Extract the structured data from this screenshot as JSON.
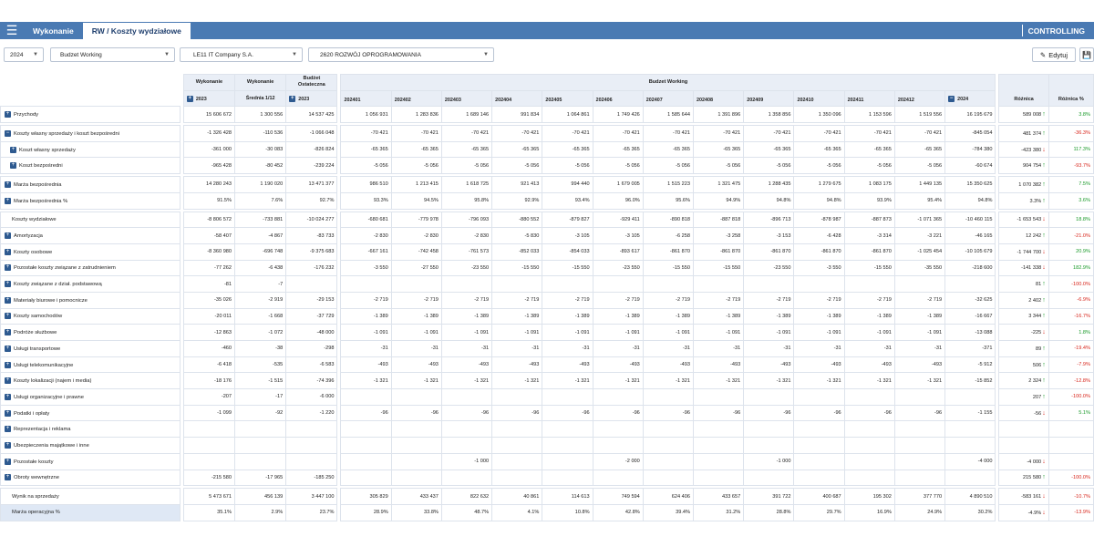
{
  "tabs": {
    "wykonanie": "Wykonanie",
    "koszty": "RW / Koszty wydziałowe",
    "controlling": "CONTROLLING"
  },
  "filters": {
    "year": "2024",
    "version": "Budzet Working",
    "company": "LE11 IT Company S.A.",
    "department": "2620 ROZWÓJ OPROGRAMOWANIA",
    "edit_label": "Edytuj"
  },
  "colors": {
    "header_bar": "#4a7ab3",
    "positive": "#1a9a2a",
    "negative": "#d8261c"
  },
  "headers": {
    "wyk": "Wykonanie",
    "wyk_year": "2023",
    "wyk2": "Wykonanie",
    "wyk2_sub": "Średnia 1/12",
    "bud": "Budżet Ostateczna",
    "bud_year": "2023",
    "bw": "Budzet Working",
    "months": [
      "202401",
      "202402",
      "202403",
      "202404",
      "202405",
      "202406",
      "202407",
      "202408",
      "202409",
      "202410",
      "202411",
      "202412"
    ],
    "total_year": "2024",
    "diff": "Różnica",
    "diff_pct": "Różnica %"
  },
  "rows": [
    {
      "label": "Przychody",
      "icon": "plus",
      "v": [
        "15 606 672",
        "1 300 556",
        "14 537 425",
        "1 056 931",
        "1 283 836",
        "1 689 146",
        "991 834",
        "1 064 861",
        "1 749 426",
        "1 585 644",
        "1 391 896",
        "1 358 856",
        "1 350 096",
        "1 153 596",
        "1 519 556",
        "16 195 679"
      ],
      "diff": "589 008",
      "dir": "up",
      "pct": "3.8%",
      "pc": "pos"
    },
    {
      "gap": true
    },
    {
      "label": "Koszty własny sprzedaży i koszt bezpośredni",
      "icon": "minus",
      "v": [
        "-1 326 428",
        "-110 536",
        "-1 066 048",
        "-70 421",
        "-70 421",
        "-70 421",
        "-70 421",
        "-70 421",
        "-70 421",
        "-70 421",
        "-70 421",
        "-70 421",
        "-70 421",
        "-70 421",
        "-70 421",
        "-845 054"
      ],
      "diff": "481 374",
      "dir": "up",
      "pct": "-36.3%",
      "pc": "neg"
    },
    {
      "label": "Koszt własny sprzedaży",
      "icon": "plus",
      "indent": true,
      "v": [
        "-361 000",
        "-30 083",
        "-826 824",
        "-65 365",
        "-65 365",
        "-65 365",
        "-65 365",
        "-65 365",
        "-65 365",
        "-65 365",
        "-65 365",
        "-65 365",
        "-65 365",
        "-65 365",
        "-65 365",
        "-784 380"
      ],
      "diff": "-423 380",
      "dir": "dn",
      "pct": "117.3%",
      "pc": "pos"
    },
    {
      "label": "Koszt bezpośredni",
      "icon": "plus",
      "indent": true,
      "v": [
        "-965 428",
        "-80 452",
        "-239 224",
        "-5 056",
        "-5 056",
        "-5 056",
        "-5 056",
        "-5 056",
        "-5 056",
        "-5 056",
        "-5 056",
        "-5 056",
        "-5 056",
        "-5 056",
        "-5 056",
        "-60 674"
      ],
      "diff": "904 754",
      "dir": "up",
      "pct": "-93.7%",
      "pc": "neg"
    },
    {
      "gap": true
    },
    {
      "label": "Marża bezpośrednia",
      "icon": "plus",
      "v": [
        "14 280 243",
        "1 190 020",
        "13 471 377",
        "986 510",
        "1 213 415",
        "1 618 725",
        "921 413",
        "994 440",
        "1 679 005",
        "1 515 223",
        "1 321 475",
        "1 288 435",
        "1 279 675",
        "1 083 175",
        "1 449 135",
        "15 350 625"
      ],
      "diff": "1 070 382",
      "dir": "up",
      "pct": "7.5%",
      "pc": "pos"
    },
    {
      "label": "Marża bezpośrednia %",
      "icon": "plus",
      "v": [
        "91.5%",
        "7.6%",
        "92.7%",
        "93.3%",
        "94.5%",
        "95.8%",
        "92.9%",
        "93.4%",
        "96.0%",
        "95.6%",
        "94.9%",
        "94.8%",
        "94.8%",
        "93.9%",
        "95.4%",
        "94.8%"
      ],
      "diff": "3.3%",
      "dir": "up",
      "pct": "3.6%",
      "pc": "pos"
    },
    {
      "gap": true
    },
    {
      "label": "Koszty wydziałowe",
      "icon": "none",
      "v": [
        "-8 806 572",
        "-733 881",
        "-10 024 277",
        "-680 681",
        "-779 978",
        "-796 093",
        "-880 552",
        "-879 827",
        "-929 411",
        "-890 818",
        "-887 818",
        "-896 713",
        "-878 987",
        "-887 873",
        "-1 071 365",
        "-10 460 115"
      ],
      "diff": "-1 653 543",
      "dir": "dn",
      "pct": "18.8%",
      "pc": "pos"
    },
    {
      "label": "Amortyzacja",
      "icon": "plus",
      "v": [
        "-58 407",
        "-4 867",
        "-83 733",
        "-2 830",
        "-2 830",
        "-2 830",
        "-5 830",
        "-3 105",
        "-3 105",
        "-6 258",
        "-3 258",
        "-3 153",
        "-6 428",
        "-3 314",
        "-3 221",
        "-46 165"
      ],
      "diff": "12 242",
      "dir": "up",
      "pct": "-21.0%",
      "pc": "neg"
    },
    {
      "label": "Koszty osobowe",
      "icon": "plus",
      "v": [
        "-8 360 980",
        "-696 748",
        "-9 375 683",
        "-667 161",
        "-742 458",
        "-761 573",
        "-852 033",
        "-854 033",
        "-893 617",
        "-861 870",
        "-861 870",
        "-861 870",
        "-861 870",
        "-861 870",
        "-1 025 454",
        "-10 105 679"
      ],
      "diff": "-1 744 700",
      "dir": "dn",
      "pct": "20.9%",
      "pc": "pos"
    },
    {
      "label": "Pozostałe koszty związane z zatrudnieniem",
      "icon": "plus",
      "v": [
        "-77 262",
        "-6 438",
        "-176 232",
        "-3 550",
        "-27 550",
        "-23 550",
        "-15 550",
        "-15 550",
        "-23 550",
        "-15 550",
        "-15 550",
        "-23 550",
        "-3 550",
        "-15 550",
        "-35 550",
        "-218 600"
      ],
      "diff": "-141 338",
      "dir": "dn",
      "pct": "182.9%",
      "pc": "pos"
    },
    {
      "label": "Koszty związane z dział. podstawową",
      "icon": "plus",
      "v": [
        "-81",
        "-7",
        "",
        "",
        "",
        "",
        "",
        "",
        "",
        "",
        "",
        "",
        "",
        "",
        "",
        ""
      ],
      "diff": "81",
      "dir": "up",
      "pct": "-100.0%",
      "pc": "neg"
    },
    {
      "label": "Materiały biurowe i pomocnicze",
      "icon": "plus",
      "v": [
        "-35 026",
        "-2 919",
        "-29 153",
        "-2 719",
        "-2 719",
        "-2 719",
        "-2 719",
        "-2 719",
        "-2 719",
        "-2 719",
        "-2 719",
        "-2 719",
        "-2 719",
        "-2 719",
        "-2 719",
        "-32 625"
      ],
      "diff": "2 402",
      "dir": "up",
      "pct": "-6.9%",
      "pc": "neg"
    },
    {
      "label": "Koszty samochodów",
      "icon": "plus",
      "v": [
        "-20 011",
        "-1 668",
        "-37 729",
        "-1 389",
        "-1 389",
        "-1 389",
        "-1 389",
        "-1 389",
        "-1 389",
        "-1 389",
        "-1 389",
        "-1 389",
        "-1 389",
        "-1 389",
        "-1 389",
        "-16 667"
      ],
      "diff": "3 344",
      "dir": "up",
      "pct": "-16.7%",
      "pc": "neg"
    },
    {
      "label": "Podróże służbowe",
      "icon": "plus",
      "v": [
        "-12 863",
        "-1 072",
        "-48 000",
        "-1 091",
        "-1 091",
        "-1 091",
        "-1 091",
        "-1 091",
        "-1 091",
        "-1 091",
        "-1 091",
        "-1 091",
        "-1 091",
        "-1 091",
        "-1 091",
        "-13 088"
      ],
      "diff": "-225",
      "dir": "dn",
      "pct": "1.8%",
      "pc": "pos"
    },
    {
      "label": "Usługi transportowe",
      "icon": "plus",
      "v": [
        "-460",
        "-38",
        "-298",
        "-31",
        "-31",
        "-31",
        "-31",
        "-31",
        "-31",
        "-31",
        "-31",
        "-31",
        "-31",
        "-31",
        "-31",
        "-371"
      ],
      "diff": "89",
      "dir": "up",
      "pct": "-19.4%",
      "pc": "neg"
    },
    {
      "label": "Usługi telekomunikacyjne",
      "icon": "plus",
      "v": [
        "-6 418",
        "-535",
        "-6 583",
        "-493",
        "-493",
        "-493",
        "-493",
        "-493",
        "-493",
        "-493",
        "-493",
        "-493",
        "-493",
        "-493",
        "-493",
        "-5 912"
      ],
      "diff": "506",
      "dir": "up",
      "pct": "-7.9%",
      "pc": "neg"
    },
    {
      "label": "Koszty lokalizacji (najem i media)",
      "icon": "plus",
      "v": [
        "-18 176",
        "-1 515",
        "-74 396",
        "-1 321",
        "-1 321",
        "-1 321",
        "-1 321",
        "-1 321",
        "-1 321",
        "-1 321",
        "-1 321",
        "-1 321",
        "-1 321",
        "-1 321",
        "-1 321",
        "-15 852"
      ],
      "diff": "2 324",
      "dir": "up",
      "pct": "-12.8%",
      "pc": "neg"
    },
    {
      "label": "Usługi organizacyjne i prawne",
      "icon": "plus",
      "v": [
        "-207",
        "-17",
        "-6 000",
        "",
        "",
        "",
        "",
        "",
        "",
        "",
        "",
        "",
        "",
        "",
        "",
        ""
      ],
      "diff": "207",
      "dir": "up",
      "pct": "-100.0%",
      "pc": "neg"
    },
    {
      "label": "Podatki i opłaty",
      "icon": "plus",
      "v": [
        "-1 099",
        "-92",
        "-1 220",
        "-96",
        "-96",
        "-96",
        "-96",
        "-96",
        "-96",
        "-96",
        "-96",
        "-96",
        "-96",
        "-96",
        "-96",
        "-1 155"
      ],
      "diff": "-56",
      "dir": "dn",
      "pct": "5.1%",
      "pc": "pos"
    },
    {
      "label": "Reprezentacja i reklama",
      "icon": "plus",
      "v": [
        "",
        "",
        "",
        "",
        "",
        "",
        "",
        "",
        "",
        "",
        "",
        "",
        "",
        "",
        "",
        ""
      ],
      "diff": "",
      "dir": "",
      "pct": "",
      "pc": ""
    },
    {
      "label": "Ubezpieczenia majątkowe i inne",
      "icon": "plus",
      "v": [
        "",
        "",
        "",
        "",
        "",
        "",
        "",
        "",
        "",
        "",
        "",
        "",
        "",
        "",
        "",
        ""
      ],
      "diff": "",
      "dir": "",
      "pct": "",
      "pc": ""
    },
    {
      "label": "Pozostałe koszty",
      "icon": "plus",
      "v": [
        "",
        "",
        "",
        "",
        "",
        "-1 000",
        "",
        "",
        "-2 000",
        "",
        "",
        "-1 000",
        "",
        "",
        "",
        "-4 000"
      ],
      "diff": "-4 000",
      "dir": "dn",
      "pct": "",
      "pc": ""
    },
    {
      "label": "Obroty wewnętrzne",
      "icon": "plus",
      "v": [
        "-215 580",
        "-17 965",
        "-185 250",
        "",
        "",
        "",
        "",
        "",
        "",
        "",
        "",
        "",
        "",
        "",
        "",
        ""
      ],
      "diff": "215 580",
      "dir": "up",
      "pct": "-100.0%",
      "pc": "neg"
    },
    {
      "gap": true
    },
    {
      "label": "Wynik na sprzedaży",
      "icon": "none",
      "v": [
        "5 473 671",
        "456 139",
        "3 447 100",
        "305 829",
        "433 437",
        "822 632",
        "40 861",
        "114 613",
        "749 594",
        "624 406",
        "433 657",
        "391 722",
        "400 687",
        "195 302",
        "377 770",
        "4 890 510"
      ],
      "diff": "-583 161",
      "dir": "dn",
      "pct": "-10.7%",
      "pc": "neg"
    },
    {
      "label": "Marża operacyjna %",
      "icon": "none",
      "selected": true,
      "v": [
        "35.1%",
        "2.9%",
        "23.7%",
        "28.9%",
        "33.8%",
        "48.7%",
        "4.1%",
        "10.8%",
        "42.8%",
        "39.4%",
        "31.2%",
        "28.8%",
        "29.7%",
        "16.9%",
        "24.9%",
        "30.2%"
      ],
      "diff": "-4.9%",
      "dir": "dn",
      "pct": "-13.9%",
      "pc": "neg"
    }
  ]
}
